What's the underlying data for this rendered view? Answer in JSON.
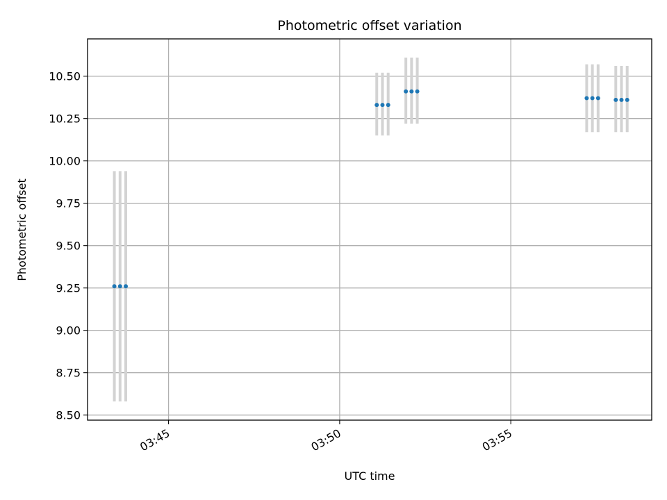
{
  "chart_data": {
    "type": "scatter",
    "title": "Photometric offset variation",
    "xlabel": "UTC time",
    "ylabel": "Photometric offset",
    "x_tick_labels": [
      "03:45",
      "03:50",
      "03:55"
    ],
    "x_tick_times": [
      "03:45",
      "03:50",
      "03:55"
    ],
    "xlim": [
      "03:42:38",
      "03:59:07"
    ],
    "y_tick_labels": [
      "8.50",
      "8.75",
      "9.00",
      "9.25",
      "9.50",
      "9.75",
      "10.00",
      "10.25",
      "10.50"
    ],
    "ylim": [
      8.47,
      10.72
    ],
    "grid": true,
    "point_color": "#1f77b4",
    "errorbar_color": "#d3d3d3",
    "series": [
      {
        "points": [
          {
            "x": "03:43:25",
            "y": 9.26,
            "err_low": 8.58,
            "err_high": 9.94
          },
          {
            "x": "03:43:35",
            "y": 9.26,
            "err_low": 8.58,
            "err_high": 9.94
          },
          {
            "x": "03:43:45",
            "y": 9.26,
            "err_low": 8.58,
            "err_high": 9.94
          },
          {
            "x": "03:51:05",
            "y": 10.33,
            "err_low": 10.15,
            "err_high": 10.52
          },
          {
            "x": "03:51:15",
            "y": 10.33,
            "err_low": 10.15,
            "err_high": 10.52
          },
          {
            "x": "03:51:25",
            "y": 10.33,
            "err_low": 10.15,
            "err_high": 10.52
          },
          {
            "x": "03:51:56",
            "y": 10.41,
            "err_low": 10.22,
            "err_high": 10.61
          },
          {
            "x": "03:52:06",
            "y": 10.41,
            "err_low": 10.22,
            "err_high": 10.61
          },
          {
            "x": "03:52:16",
            "y": 10.41,
            "err_low": 10.22,
            "err_high": 10.61
          },
          {
            "x": "03:57:13",
            "y": 10.37,
            "err_low": 10.17,
            "err_high": 10.57
          },
          {
            "x": "03:57:23",
            "y": 10.37,
            "err_low": 10.17,
            "err_high": 10.57
          },
          {
            "x": "03:57:33",
            "y": 10.37,
            "err_low": 10.17,
            "err_high": 10.57
          },
          {
            "x": "03:58:04",
            "y": 10.36,
            "err_low": 10.17,
            "err_high": 10.56
          },
          {
            "x": "03:58:14",
            "y": 10.36,
            "err_low": 10.17,
            "err_high": 10.56
          },
          {
            "x": "03:58:24",
            "y": 10.36,
            "err_low": 10.17,
            "err_high": 10.56
          }
        ]
      }
    ]
  }
}
